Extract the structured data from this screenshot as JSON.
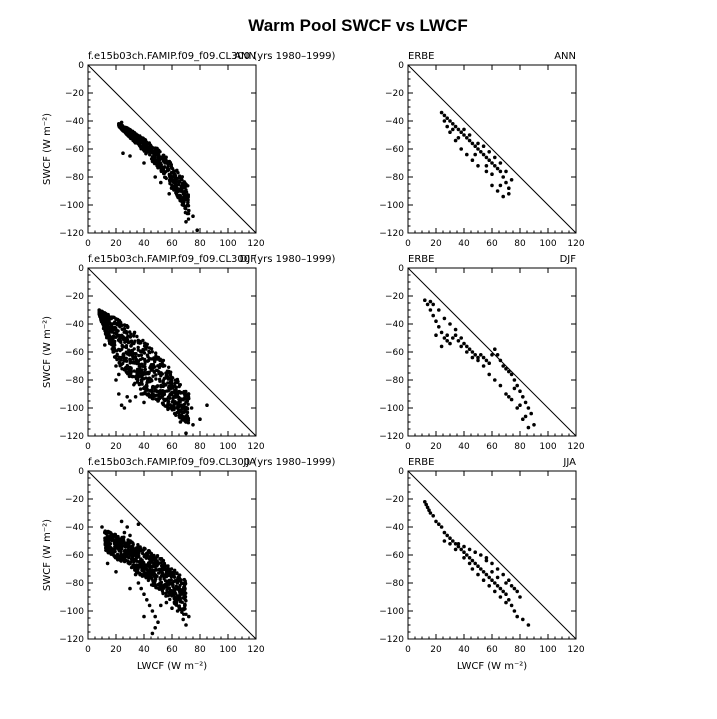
{
  "figure": {
    "title": "Warm Pool SWCF vs LWCF"
  },
  "chart_data": [
    {
      "type": "scatter",
      "left_label": "f.e15b03ch.FAMIP.f09_f09.CL300 (yrs 1980–1999)",
      "right_label": "ANN",
      "xlabel": "",
      "ylabel": "SWCF  (W m⁻²)",
      "xlim": [
        0,
        120
      ],
      "ylim": [
        -120,
        0
      ],
      "xticks": [
        "0",
        "20",
        "40",
        "60",
        "80",
        "100",
        "120"
      ],
      "yticks": [
        "0",
        "−20",
        "−40",
        "−60",
        "−80",
        "−100",
        "−120"
      ],
      "cloud": [
        [
          22,
          -42,
          -44
        ],
        [
          26,
          -44,
          -48
        ],
        [
          30,
          -46,
          -52
        ],
        [
          36,
          -50,
          -58
        ],
        [
          42,
          -54,
          -64
        ],
        [
          50,
          -60,
          -74
        ],
        [
          58,
          -68,
          -86
        ],
        [
          66,
          -78,
          -98
        ],
        [
          72,
          -86,
          -112
        ]
      ],
      "points": [
        [
          22,
          -42
        ],
        [
          24,
          -41
        ],
        [
          28,
          -45
        ],
        [
          35,
          -50
        ],
        [
          45,
          -58
        ],
        [
          50,
          -64
        ],
        [
          55,
          -70
        ],
        [
          60,
          -80
        ],
        [
          62,
          -88
        ],
        [
          65,
          -95
        ],
        [
          68,
          -100
        ],
        [
          72,
          -104
        ],
        [
          78,
          -118
        ],
        [
          75,
          -108
        ],
        [
          58,
          -92
        ],
        [
          52,
          -84
        ],
        [
          48,
          -80
        ],
        [
          70,
          -112
        ],
        [
          40,
          -70
        ],
        [
          30,
          -65
        ],
        [
          25,
          -63
        ]
      ]
    },
    {
      "type": "scatter",
      "left_label": "ERBE",
      "right_label": "ANN",
      "xlabel": "",
      "ylabel": "",
      "xlim": [
        0,
        120
      ],
      "ylim": [
        -120,
        0
      ],
      "xticks": [
        "0",
        "20",
        "40",
        "60",
        "80",
        "100",
        "120"
      ],
      "yticks": [
        "0",
        "−20",
        "−40",
        "−60",
        "−80",
        "−100",
        "−120"
      ],
      "points": [
        [
          24,
          -34
        ],
        [
          26,
          -36
        ],
        [
          28,
          -38
        ],
        [
          30,
          -40
        ],
        [
          32,
          -42
        ],
        [
          34,
          -44
        ],
        [
          36,
          -46
        ],
        [
          38,
          -48
        ],
        [
          40,
          -50
        ],
        [
          42,
          -52
        ],
        [
          44,
          -54
        ],
        [
          46,
          -56
        ],
        [
          48,
          -58
        ],
        [
          50,
          -60
        ],
        [
          52,
          -62
        ],
        [
          54,
          -64
        ],
        [
          56,
          -66
        ],
        [
          58,
          -68
        ],
        [
          60,
          -70
        ],
        [
          62,
          -72
        ],
        [
          64,
          -74
        ],
        [
          66,
          -76
        ],
        [
          68,
          -80
        ],
        [
          70,
          -84
        ],
        [
          72,
          -88
        ],
        [
          64,
          -90
        ],
        [
          60,
          -86
        ],
        [
          56,
          -76
        ],
        [
          50,
          -72
        ],
        [
          46,
          -68
        ],
        [
          42,
          -64
        ],
        [
          38,
          -60
        ],
        [
          34,
          -54
        ],
        [
          30,
          -48
        ],
        [
          28,
          -44
        ],
        [
          40,
          -46
        ],
        [
          44,
          -50
        ],
        [
          50,
          -56
        ],
        [
          54,
          -58
        ],
        [
          58,
          -62
        ],
        [
          62,
          -66
        ],
        [
          66,
          -70
        ],
        [
          70,
          -76
        ],
        [
          72,
          -92
        ],
        [
          68,
          -94
        ],
        [
          74,
          -82
        ],
        [
          66,
          -86
        ],
        [
          60,
          -78
        ],
        [
          56,
          -72
        ],
        [
          48,
          -64
        ],
        [
          36,
          -52
        ],
        [
          32,
          -46
        ],
        [
          26,
          -40
        ]
      ]
    },
    {
      "type": "scatter",
      "left_label": "f.e15b03ch.FAMIP.f09_f09.CL300 (yrs 1980–1999)",
      "right_label": "DJF",
      "xlabel": "",
      "ylabel": "SWCF  (W m⁻²)",
      "xlim": [
        0,
        120
      ],
      "ylim": [
        -120,
        0
      ],
      "xticks": [
        "0",
        "20",
        "40",
        "60",
        "80",
        "100",
        "120"
      ],
      "yticks": [
        "0",
        "−20",
        "−40",
        "−60",
        "−80",
        "−100",
        "−120"
      ],
      "cloud": [
        [
          8,
          -31,
          -33
        ],
        [
          10,
          -31,
          -40
        ],
        [
          14,
          -33,
          -52
        ],
        [
          18,
          -35,
          -62
        ],
        [
          24,
          -38,
          -72
        ],
        [
          30,
          -42,
          -80
        ],
        [
          36,
          -48,
          -88
        ],
        [
          42,
          -54,
          -92
        ],
        [
          48,
          -60,
          -94
        ],
        [
          54,
          -66,
          -98
        ],
        [
          60,
          -74,
          -104
        ],
        [
          66,
          -82,
          -108
        ],
        [
          72,
          -90,
          -112
        ]
      ],
      "points": [
        [
          8,
          -30
        ],
        [
          10,
          -31
        ],
        [
          12,
          -34
        ],
        [
          14,
          -40
        ],
        [
          16,
          -50
        ],
        [
          18,
          -60
        ],
        [
          20,
          -70
        ],
        [
          20,
          -80
        ],
        [
          22,
          -90
        ],
        [
          24,
          -98
        ],
        [
          26,
          -100
        ],
        [
          30,
          -95
        ],
        [
          34,
          -92
        ],
        [
          38,
          -90
        ],
        [
          44,
          -92
        ],
        [
          50,
          -95
        ],
        [
          60,
          -100
        ],
        [
          66,
          -110
        ],
        [
          70,
          -118
        ],
        [
          75,
          -112
        ],
        [
          80,
          -108
        ],
        [
          85,
          -98
        ],
        [
          74,
          -100
        ],
        [
          12,
          -55
        ],
        [
          22,
          -76
        ],
        [
          28,
          -92
        ],
        [
          40,
          -96
        ]
      ]
    },
    {
      "type": "scatter",
      "left_label": "ERBE",
      "right_label": "DJF",
      "xlabel": "",
      "ylabel": "",
      "xlim": [
        0,
        120
      ],
      "ylim": [
        -120,
        0
      ],
      "xticks": [
        "0",
        "20",
        "40",
        "60",
        "80",
        "100",
        "120"
      ],
      "yticks": [
        "0",
        "−20",
        "−40",
        "−60",
        "−80",
        "−100",
        "−120"
      ],
      "points": [
        [
          12,
          -23
        ],
        [
          14,
          -26
        ],
        [
          16,
          -30
        ],
        [
          18,
          -34
        ],
        [
          20,
          -38
        ],
        [
          22,
          -42
        ],
        [
          24,
          -46
        ],
        [
          26,
          -50
        ],
        [
          28,
          -52
        ],
        [
          30,
          -54
        ],
        [
          32,
          -50
        ],
        [
          34,
          -48
        ],
        [
          36,
          -52
        ],
        [
          38,
          -56
        ],
        [
          40,
          -54
        ],
        [
          42,
          -56
        ],
        [
          44,
          -58
        ],
        [
          46,
          -60
        ],
        [
          48,
          -62
        ],
        [
          50,
          -64
        ],
        [
          52,
          -62
        ],
        [
          54,
          -64
        ],
        [
          56,
          -66
        ],
        [
          58,
          -68
        ],
        [
          60,
          -62
        ],
        [
          62,
          -58
        ],
        [
          64,
          -62
        ],
        [
          66,
          -66
        ],
        [
          68,
          -70
        ],
        [
          70,
          -72
        ],
        [
          72,
          -74
        ],
        [
          74,
          -76
        ],
        [
          76,
          -80
        ],
        [
          78,
          -84
        ],
        [
          80,
          -88
        ],
        [
          82,
          -92
        ],
        [
          84,
          -96
        ],
        [
          86,
          -100
        ],
        [
          88,
          -104
        ],
        [
          90,
          -112
        ],
        [
          86,
          -114
        ],
        [
          82,
          -108
        ],
        [
          78,
          -100
        ],
        [
          74,
          -94
        ],
        [
          70,
          -90
        ],
        [
          66,
          -84
        ],
        [
          62,
          -80
        ],
        [
          58,
          -76
        ],
        [
          54,
          -70
        ],
        [
          50,
          -66
        ],
        [
          46,
          -64
        ],
        [
          42,
          -60
        ],
        [
          38,
          -50
        ],
        [
          34,
          -44
        ],
        [
          30,
          -40
        ],
        [
          26,
          -36
        ],
        [
          22,
          -30
        ],
        [
          18,
          -26
        ],
        [
          16,
          -24
        ],
        [
          20,
          -48
        ],
        [
          24,
          -56
        ],
        [
          28,
          -48
        ],
        [
          76,
          -86
        ],
        [
          80,
          -98
        ],
        [
          72,
          -92
        ],
        [
          84,
          -106
        ]
      ]
    },
    {
      "type": "scatter",
      "left_label": "f.e15b03ch.FAMIP.f09_f09.CL300 (yrs 1980–1999)",
      "right_label": "JJA",
      "xlabel": "LWCF  (W m⁻²)",
      "ylabel": "SWCF  (W m⁻²)",
      "xlim": [
        0,
        120
      ],
      "ylim": [
        -120,
        0
      ],
      "xticks": [
        "0",
        "20",
        "40",
        "60",
        "80",
        "100",
        "120"
      ],
      "yticks": [
        "0",
        "−20",
        "−40",
        "−60",
        "−80",
        "−100",
        "−120"
      ],
      "cloud": [
        [
          12,
          -42,
          -56
        ],
        [
          16,
          -44,
          -60
        ],
        [
          22,
          -46,
          -64
        ],
        [
          28,
          -48,
          -66
        ],
        [
          34,
          -52,
          -72
        ],
        [
          40,
          -54,
          -76
        ],
        [
          46,
          -58,
          -82
        ],
        [
          52,
          -62,
          -86
        ],
        [
          58,
          -68,
          -92
        ],
        [
          64,
          -72,
          -98
        ],
        [
          70,
          -78,
          -104
        ]
      ],
      "points": [
        [
          10,
          -40
        ],
        [
          12,
          -44
        ],
        [
          14,
          -48
        ],
        [
          16,
          -52
        ],
        [
          18,
          -58
        ],
        [
          20,
          -62
        ],
        [
          22,
          -56
        ],
        [
          24,
          -50
        ],
        [
          26,
          -44
        ],
        [
          28,
          -40
        ],
        [
          30,
          -46
        ],
        [
          34,
          -74
        ],
        [
          36,
          -80
        ],
        [
          38,
          -84
        ],
        [
          40,
          -88
        ],
        [
          42,
          -92
        ],
        [
          44,
          -96
        ],
        [
          46,
          -100
        ],
        [
          48,
          -104
        ],
        [
          50,
          -108
        ],
        [
          48,
          -112
        ],
        [
          46,
          -116
        ],
        [
          52,
          -96
        ],
        [
          56,
          -94
        ],
        [
          60,
          -98
        ],
        [
          64,
          -100
        ],
        [
          68,
          -106
        ],
        [
          70,
          -110
        ],
        [
          72,
          -104
        ],
        [
          24,
          -36
        ],
        [
          36,
          -38
        ],
        [
          14,
          -66
        ],
        [
          20,
          -72
        ],
        [
          30,
          -84
        ],
        [
          40,
          -104
        ]
      ]
    },
    {
      "type": "scatter",
      "left_label": "ERBE",
      "right_label": "JJA",
      "xlabel": "LWCF  (W m⁻²)",
      "ylabel": "",
      "xlim": [
        0,
        120
      ],
      "ylim": [
        -120,
        0
      ],
      "xticks": [
        "0",
        "20",
        "40",
        "60",
        "80",
        "100",
        "120"
      ],
      "yticks": [
        "0",
        "−20",
        "−40",
        "−60",
        "−80",
        "−100",
        "−120"
      ],
      "points": [
        [
          12,
          -22
        ],
        [
          13,
          -24
        ],
        [
          14,
          -26
        ],
        [
          15,
          -28
        ],
        [
          16,
          -30
        ],
        [
          18,
          -32
        ],
        [
          20,
          -36
        ],
        [
          22,
          -38
        ],
        [
          24,
          -40
        ],
        [
          26,
          -44
        ],
        [
          28,
          -46
        ],
        [
          30,
          -48
        ],
        [
          32,
          -50
        ],
        [
          34,
          -52
        ],
        [
          36,
          -54
        ],
        [
          38,
          -56
        ],
        [
          40,
          -58
        ],
        [
          42,
          -60
        ],
        [
          44,
          -62
        ],
        [
          46,
          -64
        ],
        [
          48,
          -66
        ],
        [
          50,
          -68
        ],
        [
          52,
          -70
        ],
        [
          54,
          -72
        ],
        [
          56,
          -74
        ],
        [
          58,
          -76
        ],
        [
          60,
          -78
        ],
        [
          62,
          -80
        ],
        [
          64,
          -82
        ],
        [
          66,
          -84
        ],
        [
          68,
          -86
        ],
        [
          70,
          -88
        ],
        [
          72,
          -92
        ],
        [
          74,
          -96
        ],
        [
          76,
          -100
        ],
        [
          78,
          -104
        ],
        [
          82,
          -106
        ],
        [
          86,
          -110
        ],
        [
          36,
          -52
        ],
        [
          40,
          -54
        ],
        [
          44,
          -56
        ],
        [
          48,
          -58
        ],
        [
          52,
          -60
        ],
        [
          56,
          -62
        ],
        [
          60,
          -66
        ],
        [
          64,
          -70
        ],
        [
          68,
          -74
        ],
        [
          72,
          -78
        ],
        [
          76,
          -84
        ],
        [
          80,
          -90
        ],
        [
          46,
          -70
        ],
        [
          50,
          -74
        ],
        [
          54,
          -78
        ],
        [
          58,
          -82
        ],
        [
          62,
          -86
        ],
        [
          66,
          -90
        ],
        [
          70,
          -94
        ],
        [
          40,
          -62
        ],
        [
          44,
          -66
        ],
        [
          56,
          -64
        ],
        [
          60,
          -72
        ],
        [
          64,
          -76
        ],
        [
          70,
          -80
        ],
        [
          74,
          -82
        ],
        [
          78,
          -86
        ],
        [
          30,
          -52
        ],
        [
          34,
          -56
        ],
        [
          26,
          -50
        ]
      ]
    }
  ]
}
